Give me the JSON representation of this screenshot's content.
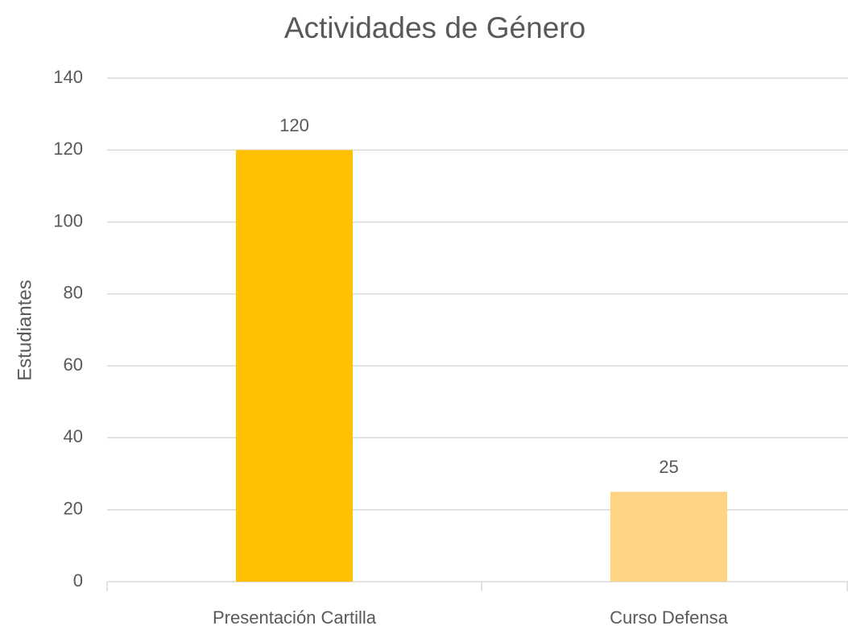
{
  "chart_data": {
    "type": "bar",
    "title": "Actividades de Género",
    "ylabel": "Estudiantes",
    "categories": [
      "Presentación Cartilla",
      "Curso Defensa"
    ],
    "values": [
      120,
      25
    ],
    "colors": [
      "#FFC000",
      "#FFD386"
    ],
    "ylim": [
      0,
      140
    ],
    "yticks": [
      0,
      20,
      40,
      60,
      80,
      100,
      120,
      140
    ],
    "grid": true
  }
}
